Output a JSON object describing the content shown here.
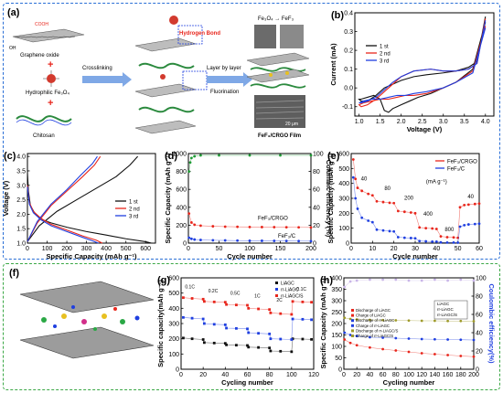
{
  "colors": {
    "frame_top": "#2a6fd6",
    "frame_bottom": "#3aa845",
    "red": "#e8261c",
    "blue": "#1f3fe0",
    "black": "#111111",
    "green": "#1f9a35",
    "olive": "#9e9a2a"
  },
  "schematic_a": {
    "panel": "(a)",
    "labels": {
      "graphene_oxide": "Graphene oxide",
      "hydrophilic": "Hydrophilic Fe₃O₄",
      "chitosan": "Chitosan",
      "crosslinking": "Crosslinking",
      "hydrogen_bond": "Hydrogen Bond",
      "layer_by_layer": "Layer by layer",
      "fluorination": "Fluorination",
      "conversion": "Fe₃O₄ → FeF₃",
      "film": "FeF₃/CRGO Film",
      "scale": "20 μm",
      "cooh": "COOH",
      "oh": "OH"
    }
  },
  "schematic_f": {
    "panel": "(f)"
  },
  "chart_data": [
    {
      "id": "b",
      "panel": "(b)",
      "type": "line",
      "xlabel": "Voltage (V)",
      "ylabel": "Current (mA)",
      "xlim": [
        0.9,
        4.2
      ],
      "ylim": [
        -0.15,
        0.4
      ],
      "xticks": [
        1.0,
        1.5,
        2.0,
        2.5,
        3.0,
        3.5,
        4.0
      ],
      "yticks": [
        -0.1,
        0.0,
        0.1,
        0.2,
        0.3,
        0.4
      ],
      "legend": [
        "1 st",
        "2 nd",
        "3 rd"
      ],
      "series": [
        {
          "name": "1 st",
          "color": "#111111",
          "x": [
            4.0,
            3.7,
            3.3,
            3.0,
            2.7,
            2.4,
            2.2,
            2.0,
            1.9,
            1.8,
            1.7,
            1.6,
            1.5,
            1.35,
            1.2,
            1.05,
            1.0,
            1.05,
            1.2,
            1.4,
            1.6,
            1.8,
            2.0,
            2.3,
            2.6,
            3.0,
            3.3,
            3.6,
            3.8,
            4.0
          ],
          "y": [
            0.35,
            0.1,
            0.03,
            0.0,
            -0.03,
            -0.05,
            -0.07,
            -0.09,
            -0.1,
            -0.11,
            -0.13,
            -0.12,
            -0.06,
            -0.04,
            -0.05,
            -0.06,
            -0.06,
            -0.07,
            -0.07,
            -0.04,
            0.0,
            0.02,
            0.04,
            0.06,
            0.07,
            0.08,
            0.09,
            0.11,
            0.14,
            0.38
          ]
        },
        {
          "name": "2 nd",
          "color": "#e8261c",
          "x": [
            4.0,
            3.7,
            3.3,
            3.0,
            2.6,
            2.3,
            2.1,
            1.9,
            1.7,
            1.5,
            1.3,
            1.1,
            1.0,
            1.05,
            1.2,
            1.4,
            1.6,
            1.8,
            2.0,
            2.3,
            2.7,
            3.0,
            3.3,
            3.6,
            3.8,
            4.0
          ],
          "y": [
            0.33,
            0.09,
            0.03,
            0.0,
            -0.03,
            -0.04,
            -0.04,
            -0.05,
            -0.06,
            -0.06,
            -0.07,
            -0.08,
            -0.09,
            -0.1,
            -0.09,
            -0.06,
            -0.02,
            0.02,
            0.06,
            0.09,
            0.1,
            0.09,
            0.09,
            0.1,
            0.13,
            0.37
          ]
        },
        {
          "name": "3 rd",
          "color": "#1f3fe0",
          "x": [
            4.0,
            3.7,
            3.3,
            3.0,
            2.6,
            2.3,
            2.1,
            1.9,
            1.7,
            1.5,
            1.3,
            1.1,
            1.0,
            1.05,
            1.2,
            1.4,
            1.6,
            1.8,
            2.0,
            2.3,
            2.7,
            3.0,
            3.3,
            3.6,
            3.8,
            4.0
          ],
          "y": [
            0.32,
            0.08,
            0.03,
            0.0,
            -0.02,
            -0.03,
            -0.04,
            -0.04,
            -0.05,
            -0.06,
            -0.06,
            -0.07,
            -0.08,
            -0.08,
            -0.07,
            -0.05,
            -0.01,
            0.03,
            0.06,
            0.09,
            0.1,
            0.09,
            0.09,
            0.1,
            0.13,
            0.36
          ]
        }
      ]
    },
    {
      "id": "c",
      "panel": "(c)",
      "type": "line",
      "xlabel": "Specific Capacity (mAh g⁻¹)",
      "ylabel": "Voltage (V)",
      "xlim": [
        0,
        650
      ],
      "ylim": [
        1.0,
        4.1
      ],
      "xticks": [
        0,
        100,
        200,
        300,
        400,
        500,
        600
      ],
      "yticks": [
        1.0,
        1.5,
        2.0,
        2.5,
        3.0,
        3.5,
        4.0
      ],
      "legend": [
        "1 st",
        "2 nd",
        "3 rd"
      ],
      "series": [
        {
          "name": "1 st discharge",
          "color": "#111111",
          "x": [
            0,
            5,
            15,
            40,
            80,
            120,
            200,
            300,
            400,
            500,
            600,
            630
          ],
          "y": [
            3.45,
            2.8,
            2.3,
            2.0,
            1.8,
            1.7,
            1.55,
            1.4,
            1.28,
            1.15,
            1.05,
            1.0
          ]
        },
        {
          "name": "1 st charge",
          "color": "#111111",
          "x": [
            0,
            60,
            150,
            250,
            350,
            450,
            520,
            560
          ],
          "y": [
            1.05,
            1.6,
            2.1,
            2.5,
            2.9,
            3.3,
            3.7,
            4.0
          ]
        },
        {
          "name": "2 nd discharge",
          "color": "#e8261c",
          "x": [
            0,
            10,
            30,
            70,
            120,
            200,
            280,
            350,
            380
          ],
          "y": [
            3.0,
            2.4,
            2.1,
            1.85,
            1.65,
            1.45,
            1.25,
            1.1,
            1.0
          ]
        },
        {
          "name": "2 nd charge",
          "color": "#e8261c",
          "x": [
            0,
            50,
            120,
            200,
            280,
            340,
            370
          ],
          "y": [
            1.05,
            1.7,
            2.3,
            2.8,
            3.3,
            3.7,
            4.0
          ]
        },
        {
          "name": "3 rd discharge",
          "color": "#1f3fe0",
          "x": [
            0,
            10,
            30,
            70,
            120,
            200,
            280,
            330,
            360
          ],
          "y": [
            2.95,
            2.35,
            2.05,
            1.8,
            1.6,
            1.4,
            1.2,
            1.08,
            1.0
          ]
        },
        {
          "name": "3 rd charge",
          "color": "#1f3fe0",
          "x": [
            0,
            50,
            120,
            200,
            270,
            330,
            355
          ],
          "y": [
            1.05,
            1.75,
            2.35,
            2.85,
            3.35,
            3.75,
            4.0
          ]
        }
      ]
    },
    {
      "id": "d",
      "panel": "(d)",
      "type": "scatter",
      "xlabel": "Cycle number",
      "ylabel": "Specific Capacity (mAh g⁻¹)",
      "y2label": "Columbic efficiency (%)",
      "xlim": [
        0,
        200
      ],
      "ylim": [
        0,
        1000
      ],
      "y2lim": [
        0,
        100
      ],
      "xticks": [
        0,
        50,
        100,
        150,
        200
      ],
      "yticks": [
        0,
        200,
        400,
        600,
        800,
        1000
      ],
      "y2ticks": [
        0,
        20,
        40,
        60,
        80,
        100
      ],
      "annotations": [
        "FeF₃/CRGO",
        "FeF₃/C"
      ],
      "series": [
        {
          "name": "FeF₃/CRGO",
          "color": "#e8261c",
          "x": [
            1,
            5,
            10,
            20,
            40,
            60,
            80,
            100,
            120,
            140,
            160,
            180,
            200
          ],
          "y": [
            330,
            230,
            205,
            195,
            188,
            184,
            182,
            180,
            179,
            178,
            177,
            176,
            175
          ]
        },
        {
          "name": "FeF₃/C",
          "color": "#1f3fe0",
          "x": [
            1,
            5,
            10,
            20,
            40,
            60,
            80,
            100,
            120,
            140,
            160,
            180,
            200
          ],
          "y": [
            60,
            48,
            40,
            35,
            32,
            30,
            28,
            27,
            26,
            25,
            24,
            23,
            22
          ]
        },
        {
          "name": "Columbic efficiency",
          "color": "#1f9a35",
          "axis": "y2",
          "x": [
            1,
            3,
            5,
            10,
            20,
            50,
            100,
            150,
            200
          ],
          "y": [
            80,
            90,
            95,
            97,
            98,
            98,
            98,
            98,
            98
          ]
        }
      ]
    },
    {
      "id": "e",
      "panel": "(e)",
      "type": "scatter",
      "xlabel": "Cycle number",
      "ylabel": "Specific Capacity (mAh g⁻¹)",
      "xlim": [
        0,
        60
      ],
      "ylim": [
        0,
        600
      ],
      "xticks": [
        0,
        10,
        20,
        30,
        40,
        50,
        60
      ],
      "yticks": [
        0,
        100,
        200,
        300,
        400,
        500,
        600
      ],
      "legend": [
        "FeF₃/CRGO",
        "FeF₃/C"
      ],
      "rate_labels": [
        "40",
        "80",
        "200",
        "400",
        "800",
        "40"
      ],
      "unit_label": "(mA g⁻¹)",
      "series": [
        {
          "name": "FeF₃/CRGO",
          "color": "#e8261c",
          "x": [
            1,
            2,
            3,
            5,
            8,
            10,
            12,
            15,
            18,
            20,
            22,
            25,
            28,
            30,
            32,
            35,
            38,
            40,
            42,
            45,
            48,
            50,
            51,
            53,
            55,
            58,
            60
          ],
          "y": [
            560,
            430,
            370,
            350,
            330,
            320,
            280,
            275,
            270,
            268,
            215,
            210,
            205,
            200,
            105,
            100,
            98,
            95,
            45,
            40,
            38,
            35,
            240,
            255,
            258,
            262,
            265
          ]
        },
        {
          "name": "FeF₃/C",
          "color": "#1f3fe0",
          "x": [
            1,
            2,
            3,
            5,
            8,
            10,
            12,
            15,
            18,
            20,
            22,
            25,
            28,
            30,
            32,
            35,
            38,
            40,
            42,
            45,
            48,
            50,
            51,
            53,
            55,
            58,
            60
          ],
          "y": [
            440,
            300,
            230,
            170,
            150,
            140,
            90,
            85,
            80,
            78,
            40,
            36,
            34,
            32,
            14,
            12,
            10,
            10,
            5,
            4,
            4,
            3,
            110,
            120,
            125,
            128,
            130
          ]
        }
      ]
    },
    {
      "id": "g",
      "panel": "(g)",
      "type": "line",
      "xlabel": "Cycling number",
      "ylabel": "Specific capacity(mAh g⁻¹)",
      "xlim": [
        0,
        120
      ],
      "ylim": [
        0,
        600
      ],
      "xticks": [
        0,
        20,
        40,
        60,
        80,
        100,
        120
      ],
      "yticks": [
        0,
        100,
        200,
        300,
        400,
        500,
        600
      ],
      "legend": [
        "LiAGC",
        "rr-LiAGC",
        "rr-LiAGC/S"
      ],
      "rate_labels": [
        "0.1C",
        "0.2C",
        "0.5C",
        "1C",
        "2C",
        "0.1C"
      ],
      "series": [
        {
          "name": "LiAGC",
          "color": "#111111",
          "x": [
            2,
            10,
            20,
            21,
            30,
            40,
            41,
            50,
            60,
            61,
            70,
            80,
            81,
            90,
            100,
            101,
            110,
            118
          ],
          "y": [
            205,
            200,
            195,
            175,
            172,
            170,
            160,
            158,
            156,
            145,
            143,
            140,
            120,
            118,
            115,
            200,
            198,
            196
          ]
        },
        {
          "name": "rr-LiAGC",
          "color": "#1f3fe0",
          "x": [
            2,
            10,
            20,
            21,
            30,
            40,
            41,
            50,
            60,
            61,
            70,
            80,
            81,
            90,
            100,
            101,
            110,
            118
          ],
          "y": [
            340,
            335,
            330,
            300,
            295,
            292,
            270,
            268,
            265,
            240,
            236,
            232,
            200,
            198,
            195,
            330,
            328,
            325
          ]
        },
        {
          "name": "rr-LiAGC/S",
          "color": "#e8261c",
          "x": [
            2,
            10,
            20,
            21,
            30,
            40,
            41,
            50,
            60,
            61,
            70,
            80,
            81,
            90,
            100,
            101,
            110,
            118
          ],
          "y": [
            470,
            465,
            460,
            445,
            442,
            440,
            425,
            422,
            420,
            400,
            396,
            392,
            370,
            365,
            360,
            445,
            442,
            440
          ]
        }
      ]
    },
    {
      "id": "h",
      "panel": "(h)",
      "type": "scatter",
      "xlabel": "Cycling number",
      "ylabel": "Specific Capacity (mAh g⁻¹)",
      "y2label": "Coulombic efficiency(%)",
      "xlim": [
        0,
        200
      ],
      "ylim": [
        0,
        400
      ],
      "y2lim": [
        0,
        100
      ],
      "xticks": [
        0,
        20,
        40,
        60,
        80,
        100,
        120,
        140,
        160,
        180,
        200
      ],
      "yticks": [
        0,
        50,
        100,
        150,
        200,
        250,
        300,
        350,
        400
      ],
      "y2ticks": [
        0,
        20,
        40,
        60,
        80,
        100
      ],
      "legend": [
        "Discharge of LiAGC",
        "Charge of LiAGC",
        "Discharge of rr-LiAGC",
        "Charge of rr-LiAGC",
        "Discharge of rr-LiAGC/S",
        "Charge of rr-LiAGC/S"
      ],
      "legend2": [
        "LiAGC",
        "rr-LiAGC",
        "rr-LiAGC/S"
      ],
      "series": [
        {
          "name": "rr-LiAGC/S",
          "color": "#9e9a2a",
          "x": [
            1,
            10,
            20,
            40,
            60,
            80,
            100,
            120,
            140,
            160,
            180,
            200
          ],
          "y": [
            225,
            220,
            218,
            216,
            215,
            214,
            213,
            212,
            212,
            211,
            211,
            210
          ]
        },
        {
          "name": "rr-LiAGC",
          "color": "#1f3fe0",
          "x": [
            1,
            10,
            20,
            40,
            60,
            80,
            100,
            120,
            140,
            160,
            180,
            200
          ],
          "y": [
            160,
            150,
            145,
            140,
            138,
            136,
            134,
            132,
            131,
            130,
            129,
            128
          ]
        },
        {
          "name": "LiAGC",
          "color": "#e8261c",
          "x": [
            1,
            10,
            20,
            40,
            60,
            80,
            100,
            120,
            140,
            160,
            180,
            200
          ],
          "y": [
            130,
            115,
            105,
            95,
            88,
            82,
            76,
            70,
            66,
            62,
            58,
            55
          ]
        },
        {
          "name": "CE",
          "color": "#c9b6e8",
          "axis": "y2",
          "x": [
            1,
            10,
            20,
            40,
            60,
            80,
            100,
            120,
            140,
            160,
            180,
            200
          ],
          "y": [
            90,
            96,
            97,
            98,
            98,
            98,
            97,
            97,
            98,
            97,
            98,
            97
          ]
        }
      ]
    }
  ]
}
